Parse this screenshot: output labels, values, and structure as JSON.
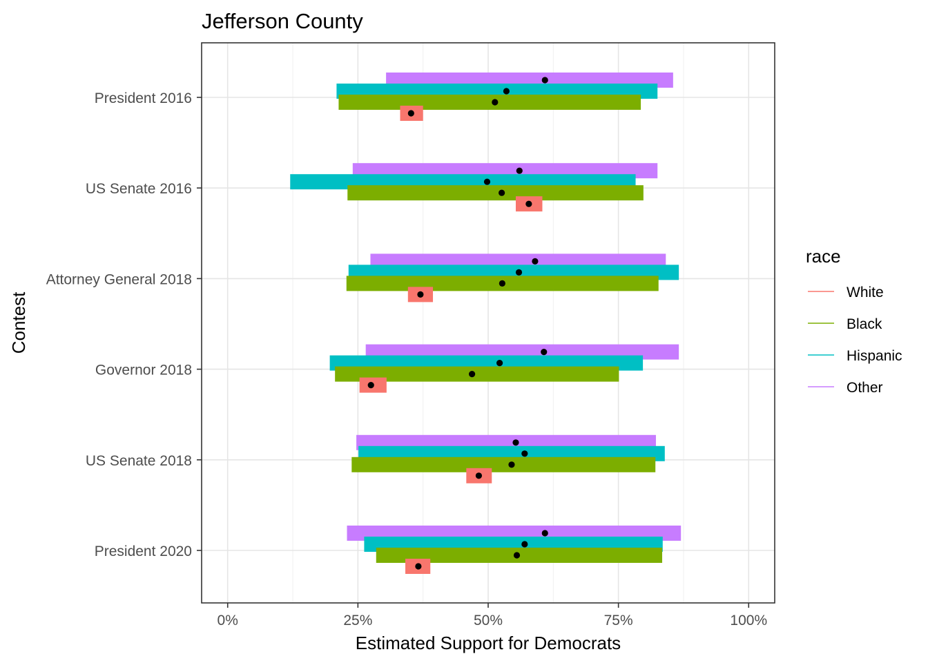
{
  "chart_data": {
    "type": "interval",
    "title": "Jefferson County",
    "xlabel": "Estimated Support for Democrats",
    "ylabel": "Contest",
    "xlim": [
      -0.05,
      1.05
    ],
    "x_ticks": [
      0,
      0.25,
      0.5,
      0.75,
      1.0
    ],
    "x_tick_labels": [
      "0%",
      "25%",
      "50%",
      "75%",
      "100%"
    ],
    "grid": true,
    "legend": {
      "title": "race",
      "position": "right",
      "entries": [
        {
          "name": "White",
          "color": "#F8766D"
        },
        {
          "name": "Black",
          "color": "#7CAE00"
        },
        {
          "name": "Hispanic",
          "color": "#00BFC4"
        },
        {
          "name": "Other",
          "color": "#C77CFF"
        }
      ]
    },
    "categories": [
      "President 2016",
      "US Senate 2016",
      "Attorney General 2018",
      "Governor 2018",
      "US Senate 2018",
      "President 2020"
    ],
    "series": [
      {
        "name": "White",
        "color": "#F8766D",
        "intervals": [
          {
            "contest": "President 2016",
            "lo": 0.331,
            "hi": 0.375,
            "est": 0.352
          },
          {
            "contest": "US Senate 2016",
            "lo": 0.553,
            "hi": 0.604,
            "est": 0.578
          },
          {
            "contest": "Attorney General 2018",
            "lo": 0.346,
            "hi": 0.394,
            "est": 0.37
          },
          {
            "contest": "Governor 2018",
            "lo": 0.253,
            "hi": 0.305,
            "est": 0.275
          },
          {
            "contest": "US Senate 2018",
            "lo": 0.458,
            "hi": 0.507,
            "est": 0.482
          },
          {
            "contest": "President 2020",
            "lo": 0.341,
            "hi": 0.389,
            "est": 0.366
          }
        ]
      },
      {
        "name": "Black",
        "color": "#7CAE00",
        "intervals": [
          {
            "contest": "President 2016",
            "lo": 0.213,
            "hi": 0.793,
            "est": 0.513
          },
          {
            "contest": "US Senate 2016",
            "lo": 0.23,
            "hi": 0.798,
            "est": 0.526
          },
          {
            "contest": "Attorney General 2018",
            "lo": 0.228,
            "hi": 0.827,
            "est": 0.527
          },
          {
            "contest": "Governor 2018",
            "lo": 0.206,
            "hi": 0.751,
            "est": 0.469
          },
          {
            "contest": "US Senate 2018",
            "lo": 0.238,
            "hi": 0.821,
            "est": 0.545
          },
          {
            "contest": "President 2020",
            "lo": 0.285,
            "hi": 0.834,
            "est": 0.555
          }
        ]
      },
      {
        "name": "Hispanic",
        "color": "#00BFC4",
        "intervals": [
          {
            "contest": "President 2016",
            "lo": 0.209,
            "hi": 0.825,
            "est": 0.535
          },
          {
            "contest": "US Senate 2016",
            "lo": 0.12,
            "hi": 0.783,
            "est": 0.498
          },
          {
            "contest": "Attorney General 2018",
            "lo": 0.232,
            "hi": 0.866,
            "est": 0.559
          },
          {
            "contest": "Governor 2018",
            "lo": 0.196,
            "hi": 0.797,
            "est": 0.522
          },
          {
            "contest": "US Senate 2018",
            "lo": 0.251,
            "hi": 0.839,
            "est": 0.57
          },
          {
            "contest": "President 2020",
            "lo": 0.262,
            "hi": 0.835,
            "est": 0.57
          }
        ]
      },
      {
        "name": "Other",
        "color": "#C77CFF",
        "intervals": [
          {
            "contest": "President 2016",
            "lo": 0.304,
            "hi": 0.855,
            "est": 0.609
          },
          {
            "contest": "US Senate 2016",
            "lo": 0.24,
            "hi": 0.825,
            "est": 0.56
          },
          {
            "contest": "Attorney General 2018",
            "lo": 0.274,
            "hi": 0.841,
            "est": 0.59
          },
          {
            "contest": "Governor 2018",
            "lo": 0.265,
            "hi": 0.866,
            "est": 0.607
          },
          {
            "contest": "US Senate 2018",
            "lo": 0.247,
            "hi": 0.822,
            "est": 0.553
          },
          {
            "contest": "President 2020",
            "lo": 0.229,
            "hi": 0.87,
            "est": 0.609
          }
        ]
      }
    ]
  }
}
